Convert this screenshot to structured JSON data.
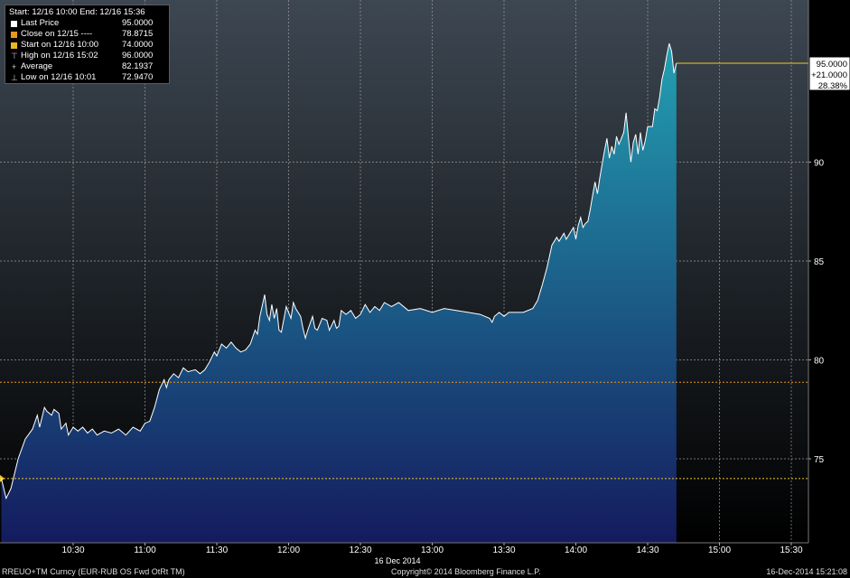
{
  "legend": {
    "header": "Start: 12/16 10:00 End: 12/16 15:36",
    "rows": [
      {
        "label": "Last Price",
        "value": "95.0000",
        "color": "#ffffff",
        "kind": "box"
      },
      {
        "label": "Close on 12/15 ----",
        "value": "78.8715",
        "color": "#e8961e",
        "kind": "box"
      },
      {
        "label": "Start on 12/16 10:00",
        "value": "74.0000",
        "color": "#e8b81e",
        "kind": "box"
      },
      {
        "label": "High on 12/16 15:02",
        "value": "96.0000",
        "kind": "high"
      },
      {
        "label": "Average",
        "value": "82.1937",
        "kind": "avg"
      },
      {
        "label": "Low on 12/16 10:01",
        "value": "72.9470",
        "kind": "low"
      }
    ]
  },
  "last_box": {
    "price": "95.0000",
    "change": "+21.0000",
    "pct": "28.38%"
  },
  "footer": {
    "ticker": "RREUO+TM Curncy (EUR-RUB OS Fwd OtRt TM)",
    "date_center": "16 Dec 2014",
    "copyright": "Copyright© 2014 Bloomberg Finance L.P.",
    "timestamp": "16-Dec-2014 15:21:08"
  },
  "colors": {
    "line": "#ffffff",
    "area_top": "#23a0b2",
    "area_bottom": "#141b5e",
    "close_line": "#e8961e",
    "start_line": "#f0c828",
    "grid": "#9a9a9a"
  },
  "chart_data": {
    "type": "area",
    "series": [
      {
        "values": [
          [
            0,
            74.0
          ],
          [
            2,
            73.0
          ],
          [
            4,
            73.5
          ],
          [
            7,
            75.0
          ],
          [
            10,
            76.0
          ],
          [
            13,
            76.5
          ],
          [
            15,
            77.2
          ],
          [
            16,
            76.6
          ],
          [
            18,
            77.6
          ],
          [
            19,
            77.4
          ],
          [
            21,
            77.2
          ],
          [
            22,
            77.5
          ],
          [
            24,
            77.3
          ],
          [
            25,
            76.5
          ],
          [
            27,
            76.8
          ],
          [
            28,
            76.2
          ],
          [
            30,
            76.6
          ],
          [
            32,
            76.4
          ],
          [
            34,
            76.6
          ],
          [
            36,
            76.3
          ],
          [
            38,
            76.5
          ],
          [
            40,
            76.2
          ],
          [
            43,
            76.4
          ],
          [
            46,
            76.3
          ],
          [
            49,
            76.5
          ],
          [
            52,
            76.2
          ],
          [
            55,
            76.6
          ],
          [
            58,
            76.4
          ],
          [
            60,
            76.8
          ],
          [
            62,
            76.9
          ],
          [
            64,
            77.6
          ],
          [
            66,
            78.5
          ],
          [
            68,
            79.0
          ],
          [
            69,
            78.6
          ],
          [
            70,
            79.0
          ],
          [
            72,
            79.3
          ],
          [
            74,
            79.1
          ],
          [
            76,
            79.6
          ],
          [
            78,
            79.4
          ],
          [
            81,
            79.5
          ],
          [
            83,
            79.3
          ],
          [
            85,
            79.5
          ],
          [
            87,
            79.9
          ],
          [
            89,
            80.4
          ],
          [
            90,
            80.2
          ],
          [
            92,
            80.8
          ],
          [
            94,
            80.6
          ],
          [
            96,
            80.9
          ],
          [
            98,
            80.6
          ],
          [
            100,
            80.4
          ],
          [
            102,
            80.5
          ],
          [
            104,
            80.8
          ],
          [
            106,
            81.5
          ],
          [
            107,
            81.3
          ],
          [
            108,
            82.2
          ],
          [
            110,
            83.3
          ],
          [
            111,
            82.3
          ],
          [
            112,
            82.0
          ],
          [
            113,
            82.8
          ],
          [
            114,
            82.1
          ],
          [
            115,
            82.6
          ],
          [
            116,
            81.5
          ],
          [
            117,
            81.4
          ],
          [
            119,
            82.7
          ],
          [
            121,
            82.1
          ],
          [
            122,
            82.9
          ],
          [
            123,
            82.6
          ],
          [
            125,
            82.2
          ],
          [
            126,
            81.6
          ],
          [
            127,
            81.1
          ],
          [
            128,
            81.5
          ],
          [
            130,
            82.2
          ],
          [
            131,
            81.6
          ],
          [
            132,
            81.5
          ],
          [
            134,
            82.1
          ],
          [
            136,
            82.0
          ],
          [
            137,
            81.5
          ],
          [
            139,
            82.0
          ],
          [
            140,
            81.6
          ],
          [
            141,
            81.7
          ],
          [
            142,
            82.5
          ],
          [
            144,
            82.3
          ],
          [
            146,
            82.5
          ],
          [
            148,
            82.1
          ],
          [
            150,
            82.3
          ],
          [
            152,
            82.8
          ],
          [
            154,
            82.4
          ],
          [
            156,
            82.7
          ],
          [
            158,
            82.5
          ],
          [
            160,
            82.9
          ],
          [
            163,
            82.7
          ],
          [
            166,
            82.9
          ],
          [
            170,
            82.5
          ],
          [
            175,
            82.6
          ],
          [
            180,
            82.4
          ],
          [
            185,
            82.6
          ],
          [
            190,
            82.5
          ],
          [
            195,
            82.4
          ],
          [
            200,
            82.3
          ],
          [
            204,
            82.1
          ],
          [
            205,
            81.9
          ],
          [
            206,
            82.2
          ],
          [
            208,
            82.4
          ],
          [
            210,
            82.2
          ],
          [
            212,
            82.4
          ],
          [
            215,
            82.4
          ],
          [
            218,
            82.4
          ],
          [
            222,
            82.6
          ],
          [
            224,
            83.0
          ],
          [
            226,
            83.8
          ],
          [
            228,
            84.7
          ],
          [
            230,
            85.8
          ],
          [
            232,
            86.2
          ],
          [
            233,
            86.0
          ],
          [
            235,
            86.4
          ],
          [
            236,
            86.1
          ],
          [
            238,
            86.5
          ],
          [
            239,
            86.7
          ],
          [
            240,
            86.1
          ],
          [
            241,
            86.8
          ],
          [
            242,
            87.2
          ],
          [
            243,
            86.7
          ],
          [
            244,
            86.9
          ],
          [
            245,
            87.0
          ],
          [
            246,
            87.6
          ],
          [
            247,
            88.3
          ],
          [
            248,
            89.0
          ],
          [
            249,
            88.4
          ],
          [
            250,
            89.2
          ],
          [
            251,
            89.9
          ],
          [
            252,
            90.6
          ],
          [
            253,
            91.2
          ],
          [
            254,
            90.2
          ],
          [
            255,
            90.8
          ],
          [
            256,
            90.4
          ],
          [
            257,
            91.3
          ],
          [
            258,
            90.9
          ],
          [
            260,
            91.5
          ],
          [
            261,
            92.5
          ],
          [
            262,
            91.2
          ],
          [
            263,
            90.0
          ],
          [
            264,
            91.0
          ],
          [
            265,
            91.4
          ],
          [
            266,
            90.4
          ],
          [
            267,
            91.5
          ],
          [
            268,
            90.6
          ],
          [
            269,
            91.1
          ],
          [
            270,
            91.8
          ],
          [
            272,
            91.8
          ],
          [
            273,
            92.7
          ],
          [
            274,
            92.6
          ],
          [
            275,
            93.3
          ],
          [
            276,
            94.2
          ],
          [
            277,
            94.7
          ],
          [
            278,
            95.4
          ],
          [
            279,
            96.0
          ],
          [
            280,
            95.6
          ],
          [
            281,
            94.5
          ],
          [
            282,
            95.0
          ]
        ]
      }
    ],
    "x_ticks": [
      "10:30",
      "11:00",
      "11:30",
      "12:00",
      "12:30",
      "13:00",
      "13:30",
      "14:00",
      "14:30",
      "15:00",
      "15:30"
    ],
    "y_ticks": [
      "75",
      "80",
      "85",
      "90"
    ],
    "x_range_minutes": [
      0,
      335
    ],
    "ylim": [
      70.5,
      100
    ],
    "close_value": 78.8715,
    "start_value": 74.0,
    "grid": true,
    "legend_position": "top-left",
    "axis_position": "right"
  }
}
